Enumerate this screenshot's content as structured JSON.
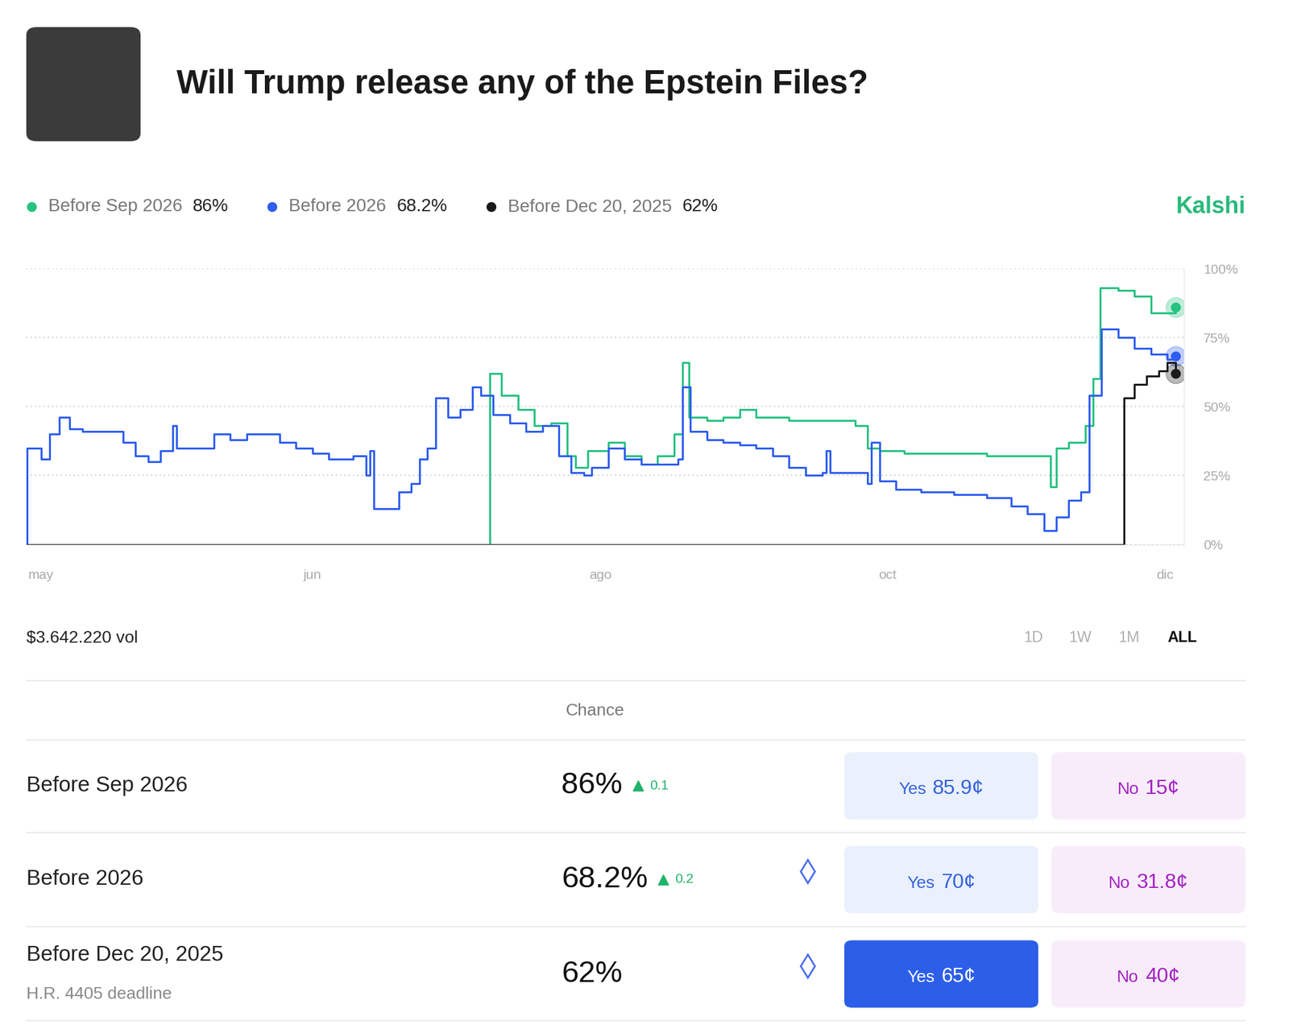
{
  "header": {
    "title": "Will Trump release any of the Epstein Files?",
    "brand": "Kalshi"
  },
  "chart_data": {
    "type": "line",
    "xlim": [
      32,
      1440
    ],
    "xticks": [
      {
        "value": 50,
        "label": "may"
      },
      {
        "value": 380,
        "label": "jun"
      },
      {
        "value": 730,
        "label": "ago"
      },
      {
        "value": 1080,
        "label": "oct"
      },
      {
        "value": 1417,
        "label": "dic"
      }
    ],
    "ylim": [
      0,
      100
    ],
    "yticks": [
      {
        "value": 0,
        "label": "0%"
      },
      {
        "value": 25,
        "label": "25%"
      },
      {
        "value": 50,
        "label": "50%"
      },
      {
        "value": 75,
        "label": "75%"
      },
      {
        "value": 100,
        "label": "100%"
      }
    ],
    "grid": true,
    "series": [
      {
        "name": "Before Sep 2026",
        "legend_value": "86%",
        "color": "#27c281",
        "x": [
          32,
          596,
          610,
          630,
          650,
          670,
          690,
          700,
          715,
          740,
          760,
          780,
          800,
          820,
          830,
          838,
          860,
          880,
          900,
          920,
          960,
          1000,
          1040,
          1055,
          1070,
          1100,
          1150,
          1200,
          1270,
          1278,
          1285,
          1300,
          1320,
          1330,
          1338,
          1360,
          1380,
          1400,
          1420,
          1430
        ],
        "values": [
          0,
          62,
          54,
          49,
          43,
          44,
          32,
          28,
          34,
          37,
          32,
          29,
          32,
          40,
          66,
          46,
          45,
          46,
          49,
          46,
          45,
          45,
          43,
          35,
          34,
          33,
          33,
          32,
          32,
          21,
          35,
          37,
          43,
          60,
          93,
          92,
          90,
          84,
          84,
          86
        ]
      },
      {
        "name": "Before 2026",
        "legend_value": "68.2%",
        "color": "#2f5ef0",
        "x": [
          32,
          33,
          50,
          60,
          72,
          85,
          100,
          150,
          165,
          180,
          195,
          210,
          215,
          260,
          280,
          300,
          340,
          360,
          380,
          400,
          430,
          445,
          450,
          455,
          485,
          500,
          510,
          520,
          530,
          545,
          560,
          575,
          585,
          600,
          620,
          640,
          660,
          680,
          695,
          710,
          720,
          740,
          760,
          780,
          825,
          830,
          840,
          860,
          880,
          900,
          920,
          940,
          960,
          980,
          1000,
          1005,
          1010,
          1050,
          1055,
          1060,
          1070,
          1090,
          1120,
          1160,
          1200,
          1230,
          1250,
          1270,
          1285,
          1300,
          1315,
          1325,
          1340,
          1360,
          1380,
          1400,
          1420,
          1430
        ],
        "values": [
          0,
          35,
          31,
          40,
          46,
          42,
          41,
          37,
          32,
          30,
          34,
          43,
          35,
          40,
          38,
          40,
          37,
          35,
          33,
          31,
          32,
          25,
          34,
          13,
          19,
          22,
          31,
          35,
          53,
          46,
          49,
          57,
          54,
          47,
          44,
          41,
          43,
          32,
          26,
          25,
          28,
          35,
          31,
          29,
          31,
          57,
          41,
          38,
          37,
          36,
          35,
          32,
          28,
          25,
          26,
          34,
          26,
          26,
          22,
          37,
          23,
          20,
          19,
          18,
          17,
          14,
          11,
          5,
          10,
          16,
          19,
          54,
          78,
          75,
          71,
          69,
          67,
          68.2
        ]
      },
      {
        "name": "Before Dec 20, 2025",
        "legend_value": "62%",
        "color": "#1a1a1a",
        "x": [
          32,
          1367,
          1380,
          1395,
          1410,
          1420,
          1430
        ],
        "values": [
          0,
          53,
          58,
          61,
          63,
          66,
          62
        ]
      }
    ]
  },
  "volume": "$3.642.220 vol",
  "range_buttons": {
    "options": [
      "1D",
      "1W",
      "1M",
      "ALL"
    ],
    "active": "ALL"
  },
  "table": {
    "header": "Chance",
    "buttons": [
      "Yes",
      "No"
    ],
    "rows": [
      {
        "market": "Before Sep 2026",
        "chance": "86%",
        "change": "0.1",
        "yes": "85.9¢",
        "no": "15¢"
      },
      {
        "market": "Before 2026",
        "chance": "68.2%",
        "change": "0.2",
        "badge": true,
        "yes": "70¢",
        "no": "31.8¢"
      },
      {
        "market": "Before Dec 20, 2025",
        "note": "H.R. 4405 deadline",
        "chance": "62%",
        "badge": true,
        "selected": "yes",
        "yes": "65¢",
        "no": "40¢"
      }
    ]
  }
}
